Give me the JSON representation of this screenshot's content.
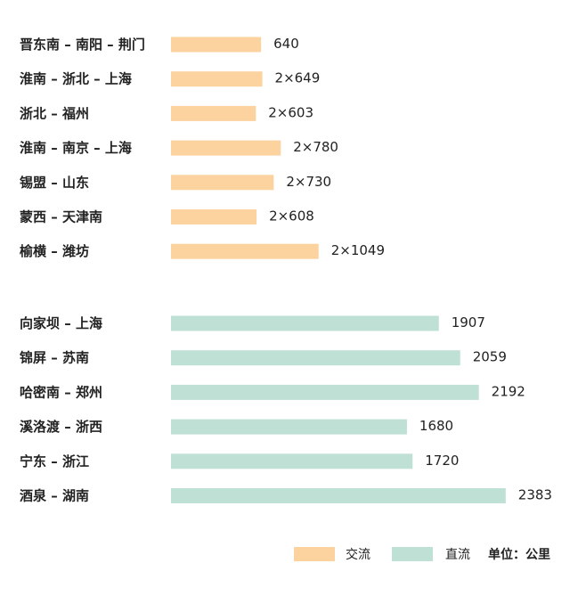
{
  "chart_data": {
    "type": "bar",
    "orientation": "horizontal",
    "unit_label": "单位：公里",
    "legend_placement": "bottom-right",
    "grid": false,
    "series": [
      {
        "name": "交流",
        "color": "#fcd29f",
        "categories": [
          "晋东南 – 南阳 – 荆门",
          "淮南 – 浙北 – 上海",
          "浙北 – 福州",
          "淮南 – 南京 – 上海",
          "锡盟 – 山东",
          "蒙西 – 天津南",
          "榆横 – 潍坊"
        ],
        "values": [
          640,
          649,
          603,
          780,
          730,
          608,
          1049
        ],
        "labels": [
          "640",
          "2×649",
          "2×603",
          "2×780",
          "2×730",
          "2×608",
          "2×1049"
        ]
      },
      {
        "name": "直流",
        "color": "#bfe0d5",
        "categories": [
          "向家坝 – 上海",
          "锦屏 – 苏南",
          "哈密南 – 郑州",
          "溪洛渡 – 浙西",
          "宁东 – 浙江",
          "酒泉 – 湖南"
        ],
        "values": [
          1907,
          2059,
          2192,
          1680,
          1720,
          2383
        ],
        "labels": [
          "1907",
          "2059",
          "2192",
          "1680",
          "1720",
          "2383"
        ]
      }
    ]
  }
}
